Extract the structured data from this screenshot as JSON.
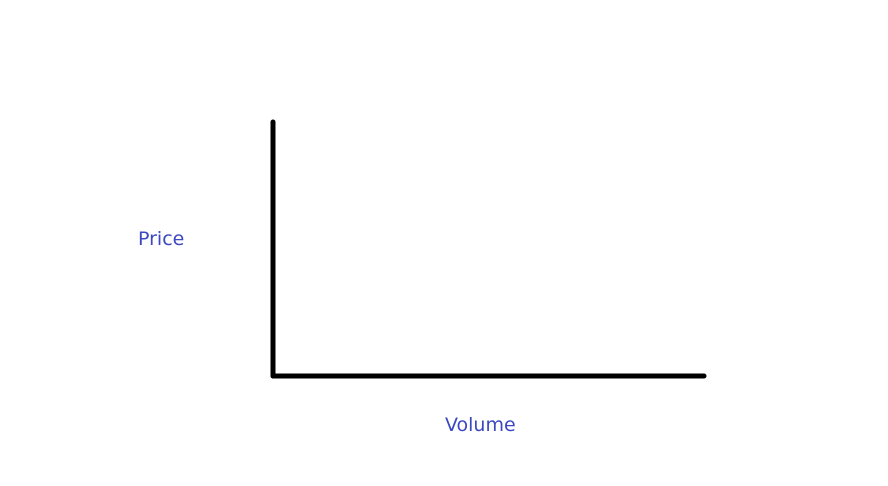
{
  "chart_data": {
    "type": "line",
    "title": "",
    "xlabel": "Volume",
    "ylabel": "Price",
    "series": [],
    "grid": false,
    "legend": "none"
  },
  "colors": {
    "axis": "#000000",
    "label": "#3b48c2",
    "background": "#ffffff"
  }
}
